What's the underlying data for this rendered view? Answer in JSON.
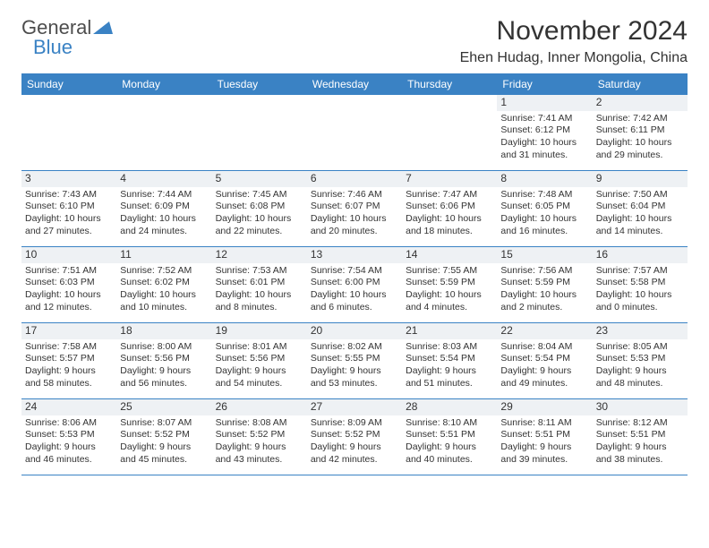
{
  "logo": {
    "word1": "General",
    "word2": "Blue"
  },
  "title": "November 2024",
  "location": "Ehen Hudag, Inner Mongolia, China",
  "colors": {
    "header_bg": "#3a82c4",
    "header_text": "#ffffff",
    "border": "#3a82c4",
    "text": "#333333",
    "daynum_bg": "#eef1f4"
  },
  "weekdays": [
    "Sunday",
    "Monday",
    "Tuesday",
    "Wednesday",
    "Thursday",
    "Friday",
    "Saturday"
  ],
  "weeks": [
    [
      {
        "n": "",
        "sr": "",
        "ss": "",
        "dl": ""
      },
      {
        "n": "",
        "sr": "",
        "ss": "",
        "dl": ""
      },
      {
        "n": "",
        "sr": "",
        "ss": "",
        "dl": ""
      },
      {
        "n": "",
        "sr": "",
        "ss": "",
        "dl": ""
      },
      {
        "n": "",
        "sr": "",
        "ss": "",
        "dl": ""
      },
      {
        "n": "1",
        "sr": "Sunrise: 7:41 AM",
        "ss": "Sunset: 6:12 PM",
        "dl": "Daylight: 10 hours and 31 minutes."
      },
      {
        "n": "2",
        "sr": "Sunrise: 7:42 AM",
        "ss": "Sunset: 6:11 PM",
        "dl": "Daylight: 10 hours and 29 minutes."
      }
    ],
    [
      {
        "n": "3",
        "sr": "Sunrise: 7:43 AM",
        "ss": "Sunset: 6:10 PM",
        "dl": "Daylight: 10 hours and 27 minutes."
      },
      {
        "n": "4",
        "sr": "Sunrise: 7:44 AM",
        "ss": "Sunset: 6:09 PM",
        "dl": "Daylight: 10 hours and 24 minutes."
      },
      {
        "n": "5",
        "sr": "Sunrise: 7:45 AM",
        "ss": "Sunset: 6:08 PM",
        "dl": "Daylight: 10 hours and 22 minutes."
      },
      {
        "n": "6",
        "sr": "Sunrise: 7:46 AM",
        "ss": "Sunset: 6:07 PM",
        "dl": "Daylight: 10 hours and 20 minutes."
      },
      {
        "n": "7",
        "sr": "Sunrise: 7:47 AM",
        "ss": "Sunset: 6:06 PM",
        "dl": "Daylight: 10 hours and 18 minutes."
      },
      {
        "n": "8",
        "sr": "Sunrise: 7:48 AM",
        "ss": "Sunset: 6:05 PM",
        "dl": "Daylight: 10 hours and 16 minutes."
      },
      {
        "n": "9",
        "sr": "Sunrise: 7:50 AM",
        "ss": "Sunset: 6:04 PM",
        "dl": "Daylight: 10 hours and 14 minutes."
      }
    ],
    [
      {
        "n": "10",
        "sr": "Sunrise: 7:51 AM",
        "ss": "Sunset: 6:03 PM",
        "dl": "Daylight: 10 hours and 12 minutes."
      },
      {
        "n": "11",
        "sr": "Sunrise: 7:52 AM",
        "ss": "Sunset: 6:02 PM",
        "dl": "Daylight: 10 hours and 10 minutes."
      },
      {
        "n": "12",
        "sr": "Sunrise: 7:53 AM",
        "ss": "Sunset: 6:01 PM",
        "dl": "Daylight: 10 hours and 8 minutes."
      },
      {
        "n": "13",
        "sr": "Sunrise: 7:54 AM",
        "ss": "Sunset: 6:00 PM",
        "dl": "Daylight: 10 hours and 6 minutes."
      },
      {
        "n": "14",
        "sr": "Sunrise: 7:55 AM",
        "ss": "Sunset: 5:59 PM",
        "dl": "Daylight: 10 hours and 4 minutes."
      },
      {
        "n": "15",
        "sr": "Sunrise: 7:56 AM",
        "ss": "Sunset: 5:59 PM",
        "dl": "Daylight: 10 hours and 2 minutes."
      },
      {
        "n": "16",
        "sr": "Sunrise: 7:57 AM",
        "ss": "Sunset: 5:58 PM",
        "dl": "Daylight: 10 hours and 0 minutes."
      }
    ],
    [
      {
        "n": "17",
        "sr": "Sunrise: 7:58 AM",
        "ss": "Sunset: 5:57 PM",
        "dl": "Daylight: 9 hours and 58 minutes."
      },
      {
        "n": "18",
        "sr": "Sunrise: 8:00 AM",
        "ss": "Sunset: 5:56 PM",
        "dl": "Daylight: 9 hours and 56 minutes."
      },
      {
        "n": "19",
        "sr": "Sunrise: 8:01 AM",
        "ss": "Sunset: 5:56 PM",
        "dl": "Daylight: 9 hours and 54 minutes."
      },
      {
        "n": "20",
        "sr": "Sunrise: 8:02 AM",
        "ss": "Sunset: 5:55 PM",
        "dl": "Daylight: 9 hours and 53 minutes."
      },
      {
        "n": "21",
        "sr": "Sunrise: 8:03 AM",
        "ss": "Sunset: 5:54 PM",
        "dl": "Daylight: 9 hours and 51 minutes."
      },
      {
        "n": "22",
        "sr": "Sunrise: 8:04 AM",
        "ss": "Sunset: 5:54 PM",
        "dl": "Daylight: 9 hours and 49 minutes."
      },
      {
        "n": "23",
        "sr": "Sunrise: 8:05 AM",
        "ss": "Sunset: 5:53 PM",
        "dl": "Daylight: 9 hours and 48 minutes."
      }
    ],
    [
      {
        "n": "24",
        "sr": "Sunrise: 8:06 AM",
        "ss": "Sunset: 5:53 PM",
        "dl": "Daylight: 9 hours and 46 minutes."
      },
      {
        "n": "25",
        "sr": "Sunrise: 8:07 AM",
        "ss": "Sunset: 5:52 PM",
        "dl": "Daylight: 9 hours and 45 minutes."
      },
      {
        "n": "26",
        "sr": "Sunrise: 8:08 AM",
        "ss": "Sunset: 5:52 PM",
        "dl": "Daylight: 9 hours and 43 minutes."
      },
      {
        "n": "27",
        "sr": "Sunrise: 8:09 AM",
        "ss": "Sunset: 5:52 PM",
        "dl": "Daylight: 9 hours and 42 minutes."
      },
      {
        "n": "28",
        "sr": "Sunrise: 8:10 AM",
        "ss": "Sunset: 5:51 PM",
        "dl": "Daylight: 9 hours and 40 minutes."
      },
      {
        "n": "29",
        "sr": "Sunrise: 8:11 AM",
        "ss": "Sunset: 5:51 PM",
        "dl": "Daylight: 9 hours and 39 minutes."
      },
      {
        "n": "30",
        "sr": "Sunrise: 8:12 AM",
        "ss": "Sunset: 5:51 PM",
        "dl": "Daylight: 9 hours and 38 minutes."
      }
    ]
  ]
}
